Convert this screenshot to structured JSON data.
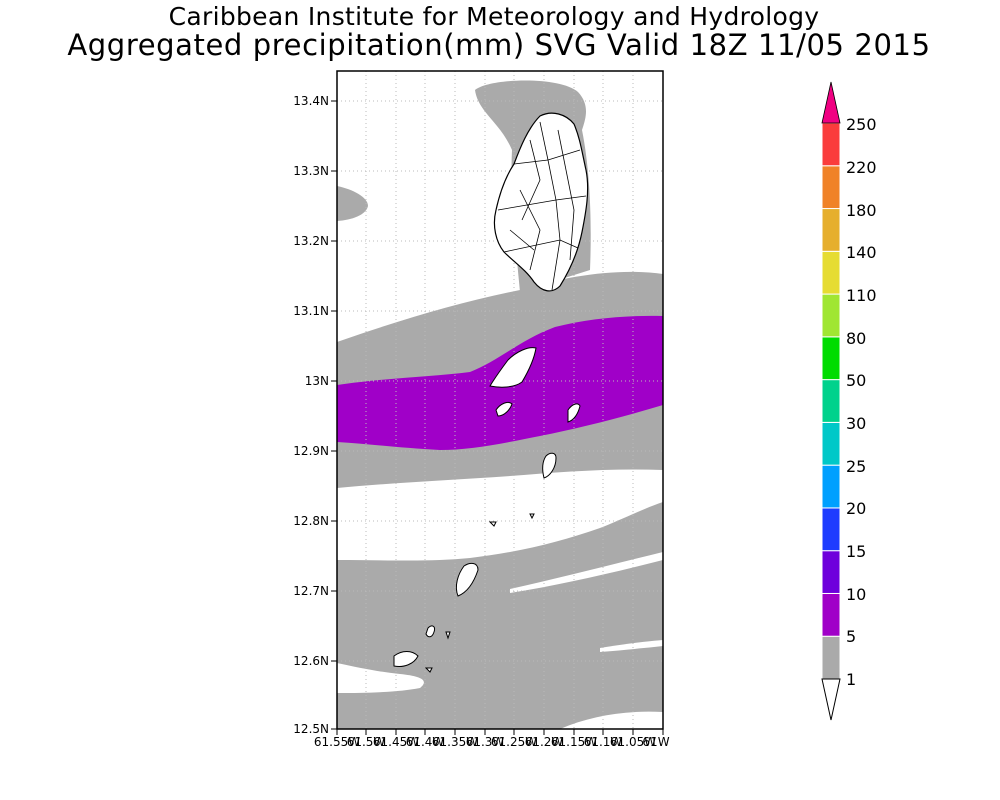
{
  "header": {
    "title": "Caribbean Institute for Meteorology and Hydrology",
    "subtitle": "Aggregated precipitation(mm) SVG Valid 18Z 11/05 2015"
  },
  "map": {
    "lat_labels": [
      "13.4N",
      "13.3N",
      "13.2N",
      "13.1N",
      "13N",
      "12.9N",
      "12.8N",
      "12.7N",
      "12.6N",
      "12.5N"
    ],
    "lon_labels": [
      "61.55W",
      "61.5W",
      "61.45W",
      "61.4W",
      "61.35W",
      "61.3W",
      "61.25W",
      "61.2W",
      "61.15W",
      "61.1W",
      "61.05W",
      "61W"
    ],
    "lat_range": [
      12.5,
      13.44
    ],
    "lon_range": [
      -61.55,
      -61.0
    ]
  },
  "colorbar": {
    "labels": [
      "1",
      "5",
      "10",
      "15",
      "20",
      "25",
      "30",
      "50",
      "80",
      "110",
      "140",
      "180",
      "220",
      "250"
    ],
    "colors": [
      "#aaaaaa",
      "#a000c8",
      "#6e00dc",
      "#1e3cff",
      "#00a0ff",
      "#00c8c8",
      "#00d28c",
      "#00dc00",
      "#a0e632",
      "#e6dc32",
      "#e6af2d",
      "#f08228",
      "#fa3c3c",
      "#f00082"
    ],
    "top_arrow_color": "#f00082",
    "bottom_arrow_color": "#ffffff"
  }
}
